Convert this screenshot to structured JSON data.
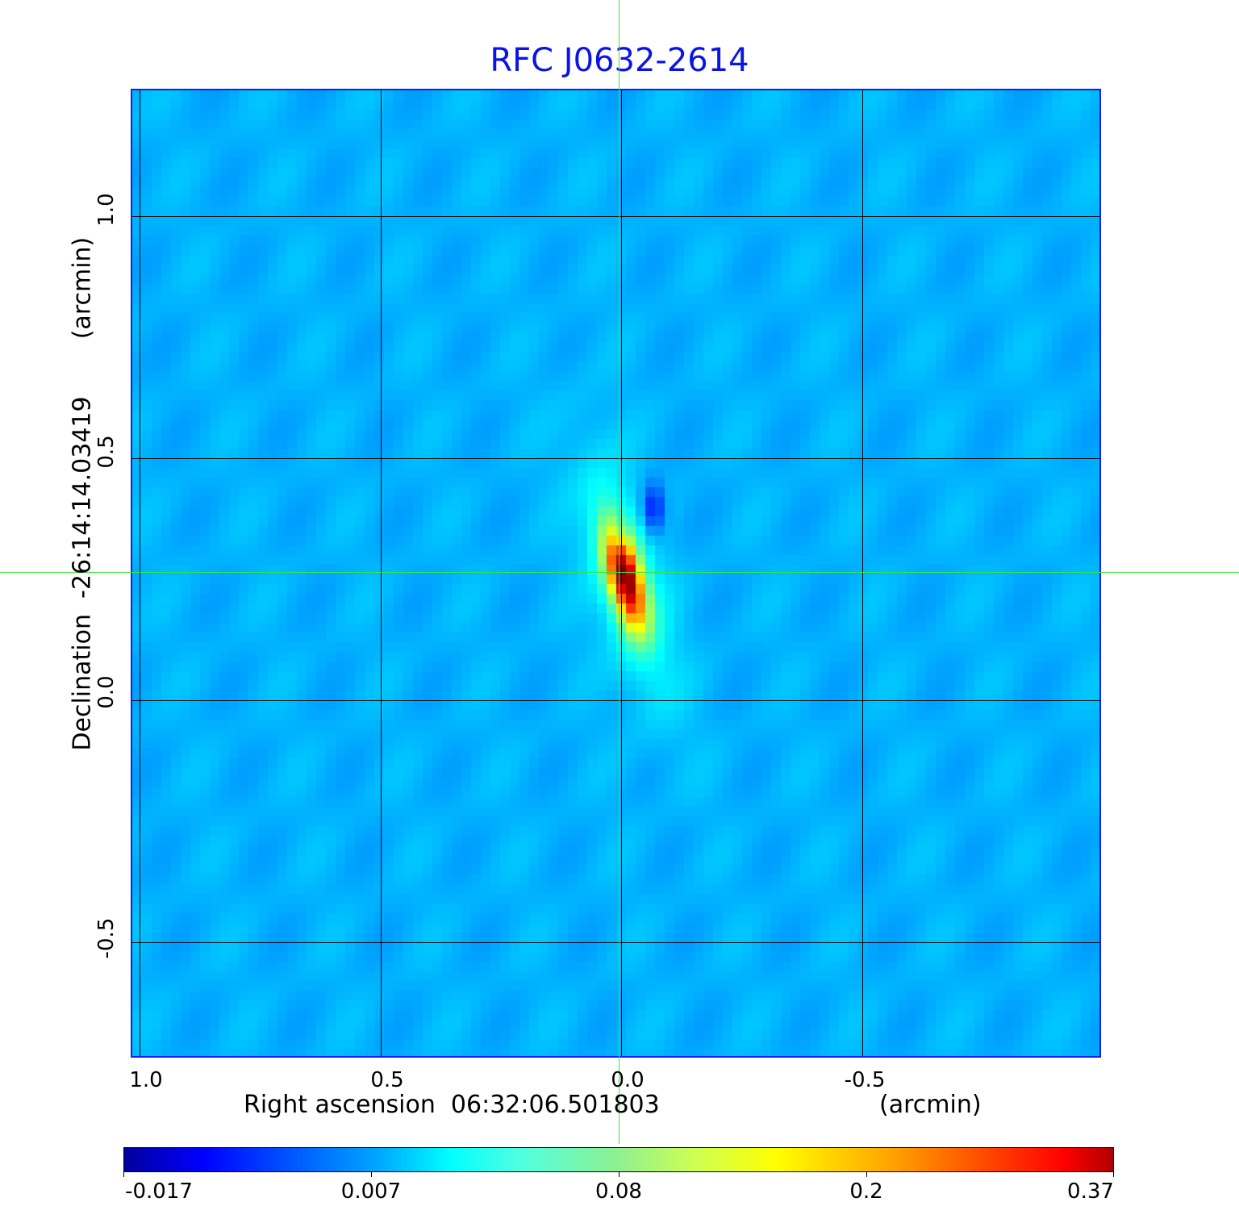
{
  "chart_data": {
    "type": "heatmap",
    "title": "RFC J0632-2614",
    "xlabel": "Right ascension  06:32:06.501803",
    "xunit": "(arcmin)",
    "ylabel": "Declination  -26:14:14.03419",
    "yunit": "(arcmin)",
    "xticks": [
      "1.0",
      "0.5",
      "0.0",
      "-0.5"
    ],
    "yticks": [
      "1.0",
      "0.5",
      "0.0",
      "-0.5"
    ],
    "xlim": [
      1.02,
      -0.99
    ],
    "ylim": [
      -0.74,
      1.26
    ],
    "grid": true,
    "colormap": "jet",
    "colorbar": {
      "ticks": [
        "-0.017",
        "0.007",
        "0.08",
        "0.2",
        "0.37"
      ],
      "range": [
        -0.017,
        0.37
      ],
      "placement": "bottom"
    },
    "peak": {
      "ra_arcmin": 0.0,
      "dec_arcmin": 0.26,
      "value": 0.37
    },
    "crosshair_color": "#3ce63c",
    "title_color": "#0a14e6"
  }
}
